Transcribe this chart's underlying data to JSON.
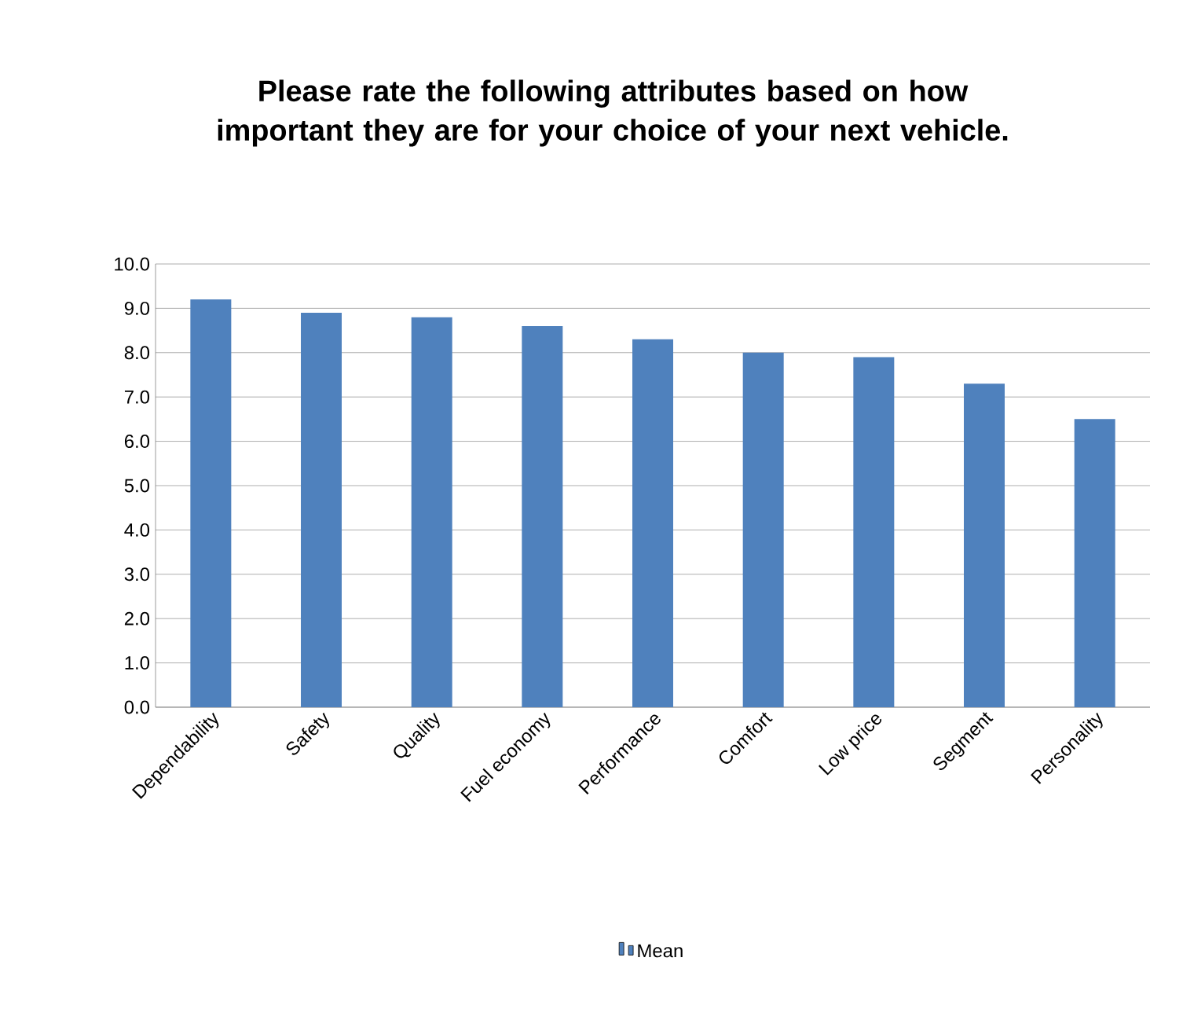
{
  "chart_data": {
    "type": "bar",
    "title": "Please rate the following attributes based on how important they are for your choice of your next vehicle.",
    "categories": [
      "Dependability",
      "Safety",
      "Quality",
      "Fuel economy",
      "Performance",
      "Comfort",
      "Low price",
      "Segment",
      "Personality"
    ],
    "series": [
      {
        "name": "Mean",
        "color": "#4f81bd",
        "values": [
          9.2,
          8.9,
          8.8,
          8.6,
          8.3,
          8.0,
          7.9,
          7.3,
          6.5
        ]
      }
    ],
    "ylim": [
      0,
      10
    ],
    "yticks": [
      {
        "value": 0,
        "label": "0.0"
      },
      {
        "value": 1,
        "label": "1.0"
      },
      {
        "value": 2,
        "label": "2.0"
      },
      {
        "value": 3,
        "label": "3.0"
      },
      {
        "value": 4,
        "label": "4.0"
      },
      {
        "value": 5,
        "label": "5.0"
      },
      {
        "value": 6,
        "label": "6.0"
      },
      {
        "value": 7,
        "label": "7.0"
      },
      {
        "value": 8,
        "label": "8.0"
      },
      {
        "value": 9,
        "label": "9.0"
      },
      {
        "value": 10,
        "label": "10.0"
      }
    ],
    "grid": "y",
    "legend": "bottom"
  }
}
